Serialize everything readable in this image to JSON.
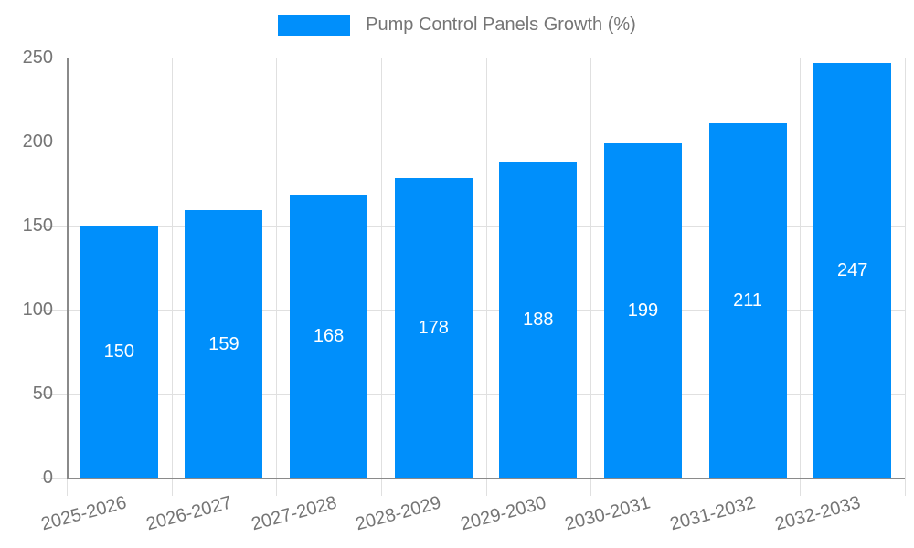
{
  "legend": {
    "label": "Pump Control Panels Growth (%)"
  },
  "colors": {
    "bar": "#008FFB",
    "grid": "#e0e0e0",
    "axis": "#8a8a8a",
    "text": "#757575",
    "bar_label": "#ffffff",
    "background": "#ffffff"
  },
  "chart_data": {
    "type": "bar",
    "title": "Pump Control Panels Growth (%)",
    "categories": [
      "2025-2026",
      "2026-2027",
      "2027-2028",
      "2028-2029",
      "2029-2030",
      "2030-2031",
      "2031-2032",
      "2032-2033"
    ],
    "values": [
      150,
      159,
      168,
      178,
      188,
      199,
      211,
      247
    ],
    "xlabel": "",
    "ylabel": "",
    "ylim": [
      0,
      250
    ],
    "y_ticks": [
      0,
      50,
      100,
      150,
      200,
      250
    ],
    "grid": true,
    "legend_position": "top",
    "bar_value_labels": true,
    "x_label_rotation_deg": -15
  }
}
